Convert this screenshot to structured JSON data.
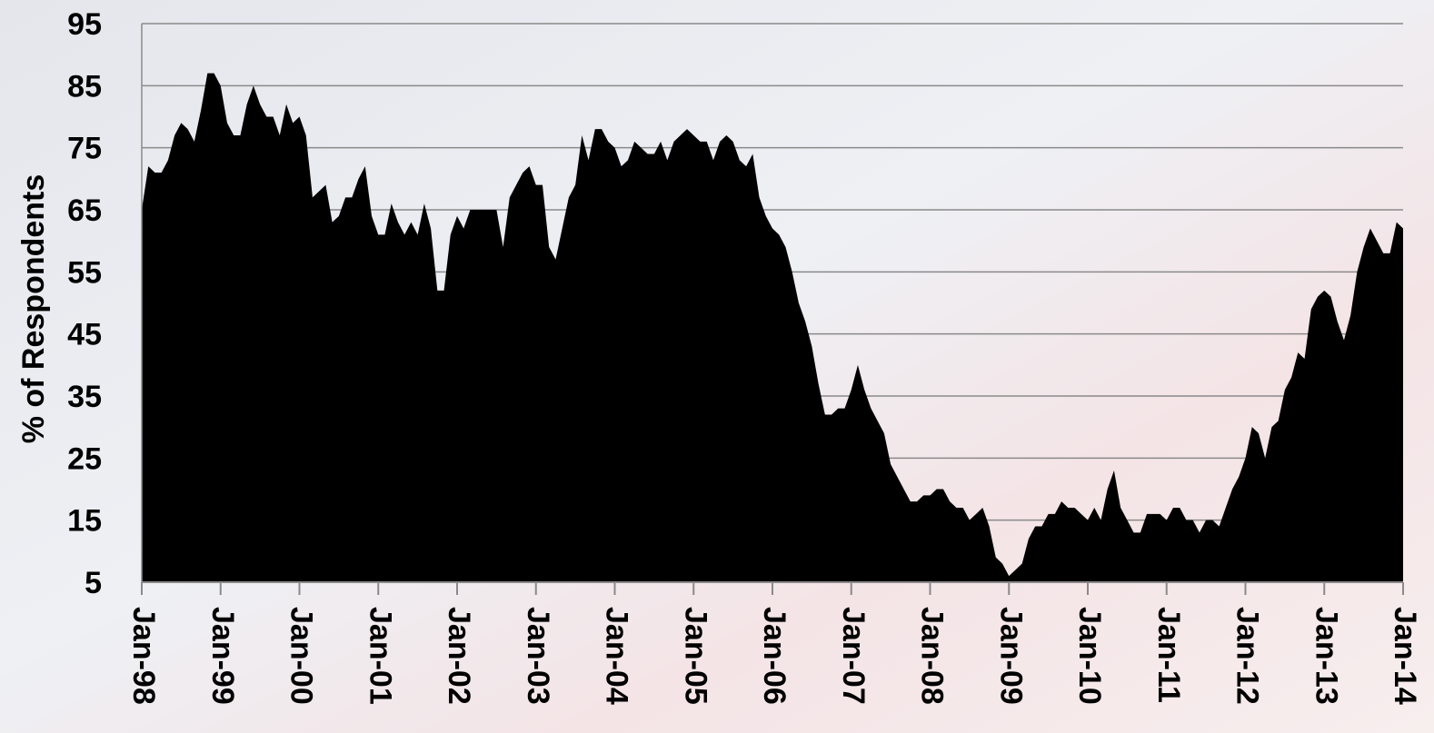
{
  "chart_data": {
    "type": "area",
    "ylabel": "% of Respondents",
    "categories": [
      "Jan-98",
      null,
      null,
      null,
      null,
      null,
      null,
      null,
      null,
      null,
      null,
      null,
      "Jan-99",
      null,
      null,
      null,
      null,
      null,
      null,
      null,
      null,
      null,
      null,
      null,
      "Jan-00",
      null,
      null,
      null,
      null,
      null,
      null,
      null,
      null,
      null,
      null,
      null,
      "Jan-01",
      null,
      null,
      null,
      null,
      null,
      null,
      null,
      null,
      null,
      null,
      null,
      "Jan-02",
      null,
      null,
      null,
      null,
      null,
      null,
      null,
      null,
      null,
      null,
      null,
      "Jan-03",
      null,
      null,
      null,
      null,
      null,
      null,
      null,
      null,
      null,
      null,
      null,
      "Jan-04",
      null,
      null,
      null,
      null,
      null,
      null,
      null,
      null,
      null,
      null,
      null,
      "Jan-05",
      null,
      null,
      null,
      null,
      null,
      null,
      null,
      null,
      null,
      null,
      null,
      "Jan-06",
      null,
      null,
      null,
      null,
      null,
      null,
      null,
      null,
      null,
      null,
      null,
      "Jan-07",
      null,
      null,
      null,
      null,
      null,
      null,
      null,
      null,
      null,
      null,
      null,
      "Jan-08",
      null,
      null,
      null,
      null,
      null,
      null,
      null,
      null,
      null,
      null,
      null,
      "Jan-09",
      null,
      null,
      null,
      null,
      null,
      null,
      null,
      null,
      null,
      null,
      null,
      "Jan-10",
      null,
      null,
      null,
      null,
      null,
      null,
      null,
      null,
      null,
      null,
      null,
      "Jan-11",
      null,
      null,
      null,
      null,
      null,
      null,
      null,
      null,
      null,
      null,
      null,
      "Jan-12",
      null,
      null,
      null,
      null,
      null,
      null,
      null,
      null,
      null,
      null,
      null,
      "Jan-13",
      null,
      null,
      null,
      null,
      null,
      null,
      null,
      null,
      null,
      null,
      null,
      "Jan-14"
    ],
    "values": [
      65,
      72,
      71,
      71,
      73,
      77,
      79,
      78,
      76,
      81,
      87,
      87,
      85,
      79,
      77,
      77,
      82,
      85,
      82,
      80,
      80,
      77,
      82,
      79,
      80,
      77,
      67,
      68,
      69,
      63,
      64,
      67,
      67,
      70,
      72,
      64,
      61,
      61,
      66,
      63,
      61,
      63,
      61,
      66,
      62,
      52,
      52,
      61,
      64,
      62,
      65,
      65,
      65,
      65,
      65,
      59,
      67,
      69,
      71,
      72,
      69,
      69,
      59,
      57,
      62,
      67,
      69,
      77,
      73,
      78,
      78,
      76,
      75,
      72,
      73,
      76,
      75,
      74,
      74,
      76,
      73,
      76,
      77,
      78,
      77,
      76,
      76,
      73,
      76,
      77,
      76,
      73,
      72,
      74,
      67,
      64,
      62,
      61,
      59,
      55,
      50,
      47,
      43,
      37,
      32,
      32,
      33,
      33,
      36,
      40,
      36,
      33,
      31,
      29,
      24,
      22,
      20,
      18,
      18,
      19,
      19,
      20,
      20,
      18,
      17,
      17,
      15,
      16,
      17,
      14,
      9,
      8,
      6,
      7,
      8,
      12,
      14,
      14,
      16,
      16,
      18,
      17,
      17,
      16,
      15,
      17,
      15,
      20,
      23,
      17,
      15,
      13,
      13,
      16,
      16,
      16,
      15,
      17,
      17,
      15,
      15,
      13,
      15,
      15,
      14,
      17,
      20,
      22,
      25,
      30,
      29,
      25,
      30,
      31,
      36,
      38,
      42,
      41,
      49,
      51,
      52,
      51,
      47,
      44,
      48,
      55,
      59,
      62,
      60,
      58,
      58,
      63,
      62
    ],
    "color": "#000000",
    "ylim": [
      5,
      95
    ],
    "yticks": [
      5,
      15,
      25,
      35,
      45,
      55,
      65,
      75,
      85,
      95
    ],
    "grid": true
  }
}
